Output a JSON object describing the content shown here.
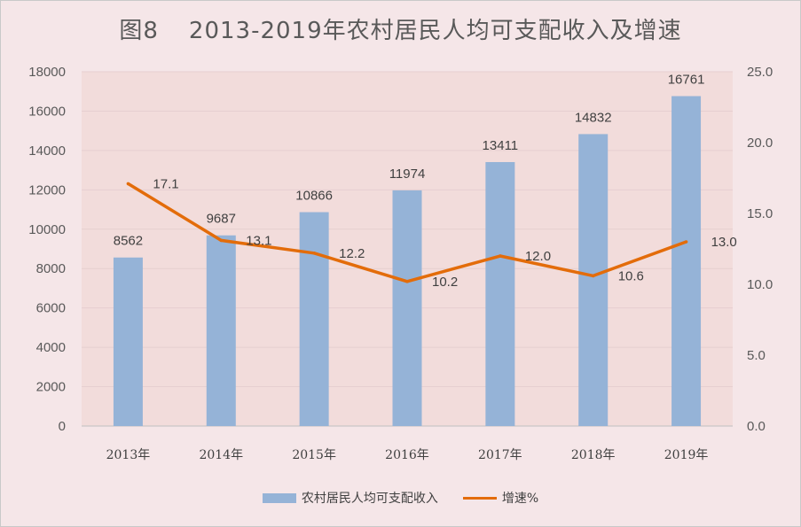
{
  "title": {
    "fig": "图8",
    "text": "2013-2019年农村居民人均可支配收入及增速"
  },
  "colors": {
    "background": "#f5e6e8",
    "plot_area": "#f2dcdb",
    "bar": "#95b3d7",
    "line": "#e36c0a",
    "grid": "#e6cfd0"
  },
  "chart_data": {
    "type": "bar",
    "categories": [
      "2013年",
      "2014年",
      "2015年",
      "2016年",
      "2017年",
      "2018年",
      "2019年"
    ],
    "series": [
      {
        "name": "农村居民人均可支配收入",
        "type": "bar",
        "axis": "left",
        "values": [
          8562,
          9687,
          10866,
          11974,
          13411,
          14832,
          16761
        ],
        "labels": [
          "8562",
          "9687",
          "10866",
          "11974",
          "13411",
          "14832",
          "16761"
        ]
      },
      {
        "name": "增速%",
        "type": "line",
        "axis": "right",
        "values": [
          17.1,
          13.1,
          12.2,
          10.2,
          12.0,
          10.6,
          13.0
        ],
        "labels": [
          "17.1",
          "13.1",
          "12.2",
          "10.2",
          "12.0",
          "10.6",
          "13.0"
        ]
      }
    ],
    "y_left": {
      "ylim": [
        0,
        18000
      ],
      "ticks": [
        "0",
        "2000",
        "4000",
        "6000",
        "8000",
        "10000",
        "12000",
        "14000",
        "16000",
        "18000"
      ]
    },
    "y_right": {
      "ylim": [
        0,
        25
      ],
      "ticks": [
        "0.0",
        "5.0",
        "10.0",
        "15.0",
        "20.0",
        "25.0"
      ]
    },
    "grid": true,
    "legend": "bottom"
  },
  "legend": {
    "bar_label": "农村居民人均可支配收入",
    "line_label": "增速%"
  }
}
